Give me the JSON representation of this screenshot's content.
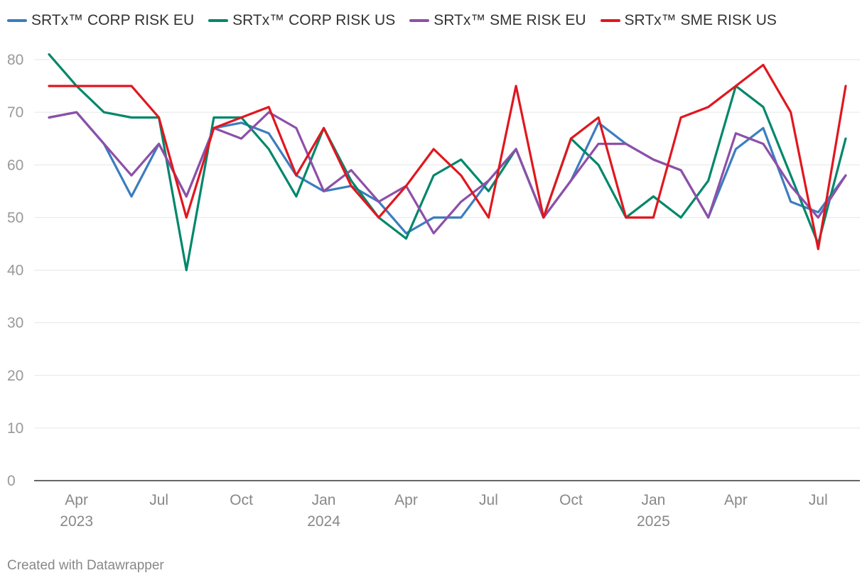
{
  "chart_data": {
    "type": "line",
    "title": "",
    "xlabel": "",
    "ylabel": "",
    "ylim": [
      0,
      80
    ],
    "yticks": [
      0,
      10,
      20,
      30,
      40,
      50,
      60,
      70,
      80
    ],
    "grid": true,
    "legend_position": "top-left",
    "x": [
      "2023-03",
      "2023-04",
      "2023-05",
      "2023-06",
      "2023-07",
      "2023-08",
      "2023-09",
      "2023-10",
      "2023-11",
      "2023-12",
      "2024-01",
      "2024-02",
      "2024-03",
      "2024-04",
      "2024-05",
      "2024-06",
      "2024-07",
      "2024-08",
      "2024-09",
      "2024-10",
      "2024-11",
      "2024-12",
      "2025-01",
      "2025-02",
      "2025-03",
      "2025-04",
      "2025-05",
      "2025-06",
      "2025-07",
      "2025-08"
    ],
    "x_tick_labels": [
      {
        "index": 1,
        "month": "Apr",
        "year": "2023"
      },
      {
        "index": 4,
        "month": "Jul",
        "year": ""
      },
      {
        "index": 7,
        "month": "Oct",
        "year": ""
      },
      {
        "index": 10,
        "month": "Jan",
        "year": "2024"
      },
      {
        "index": 13,
        "month": "Apr",
        "year": ""
      },
      {
        "index": 16,
        "month": "Jul",
        "year": ""
      },
      {
        "index": 19,
        "month": "Oct",
        "year": ""
      },
      {
        "index": 22,
        "month": "Jan",
        "year": "2025"
      },
      {
        "index": 25,
        "month": "Apr",
        "year": ""
      },
      {
        "index": 28,
        "month": "Jul",
        "year": ""
      }
    ],
    "series": [
      {
        "name": "SRTx™ CORP RISK EU",
        "color": "#3b7dbf",
        "values": [
          69,
          70,
          64,
          54,
          64,
          54,
          67,
          68,
          66,
          58,
          55,
          56,
          53,
          47,
          50,
          50,
          57,
          63,
          50,
          57,
          68,
          64,
          61,
          59,
          50,
          63,
          67,
          53,
          51,
          58
        ]
      },
      {
        "name": "SRTx™ CORP RISK US",
        "color": "#00876a",
        "values": [
          81,
          75,
          70,
          69,
          69,
          40,
          69,
          69,
          63,
          54,
          67,
          57,
          50,
          46,
          58,
          61,
          55,
          63,
          50,
          65,
          60,
          50,
          54,
          50,
          57,
          75,
          71,
          58,
          45,
          65
        ]
      },
      {
        "name": "SRTx™ SME RISK EU",
        "color": "#8e4fa8",
        "values": [
          69,
          70,
          64,
          58,
          64,
          54,
          67,
          65,
          70,
          67,
          55,
          59,
          53,
          56,
          47,
          53,
          57,
          63,
          50,
          57,
          64,
          64,
          61,
          59,
          50,
          66,
          64,
          56,
          50,
          58
        ]
      },
      {
        "name": "SRTx™ SME RISK US",
        "color": "#e0171f",
        "values": [
          75,
          75,
          75,
          75,
          69,
          50,
          67,
          69,
          71,
          58,
          67,
          56,
          50,
          56,
          63,
          58,
          50,
          75,
          50,
          65,
          69,
          50,
          50,
          69,
          71,
          75,
          79,
          70,
          44,
          75
        ]
      }
    ]
  },
  "footer": {
    "credit": "Created with Datawrapper"
  }
}
